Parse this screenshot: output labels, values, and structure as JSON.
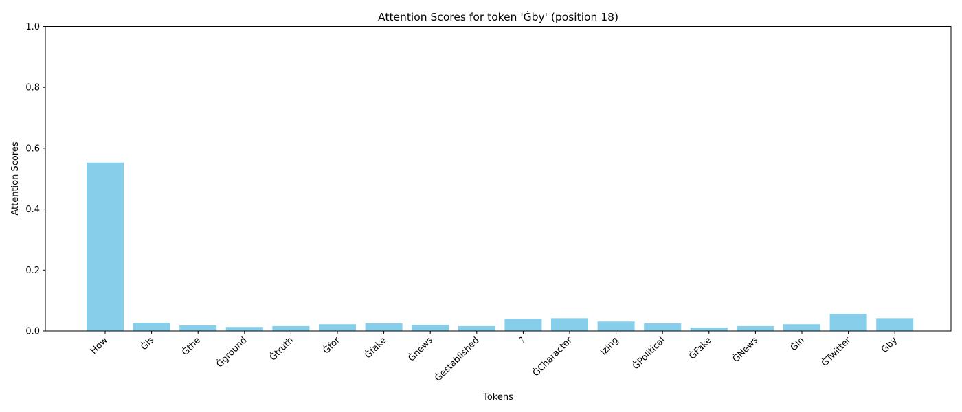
{
  "chart_data": {
    "type": "bar",
    "title": "Attention Scores for token 'Ġby' (position 18)",
    "xlabel": "Tokens",
    "ylabel": "Attention Scores",
    "ylim": [
      0,
      1
    ],
    "yticks": [
      "0.0",
      "0.2",
      "0.4",
      "0.6",
      "0.8",
      "1.0"
    ],
    "grid": false,
    "bar_color": "#87ceeb",
    "categories": [
      "How",
      "Ġis",
      "Ġthe",
      "Ġground",
      "Ġtruth",
      "Ġfor",
      "Ġfake",
      "Ġnews",
      "Ġestablished",
      "?",
      "ĠCharacter",
      "izing",
      "ĠPolitical",
      "ĠFake",
      "ĠNews",
      "Ġin",
      "ĠTwitter",
      "Ġby"
    ],
    "values": [
      0.553,
      0.027,
      0.018,
      0.013,
      0.016,
      0.022,
      0.025,
      0.02,
      0.016,
      0.04,
      0.042,
      0.031,
      0.025,
      0.011,
      0.016,
      0.022,
      0.056,
      0.042
    ]
  }
}
